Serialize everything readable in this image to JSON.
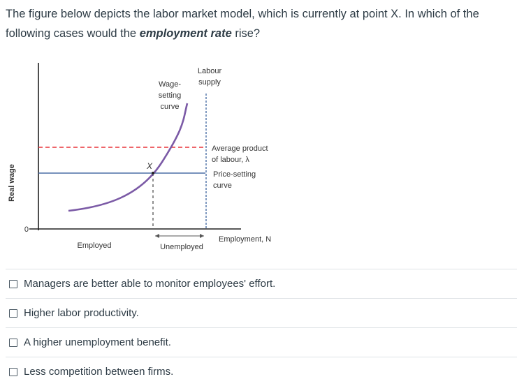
{
  "question": {
    "part1": "The figure below depicts the labor market model, which is currently at point X. In which of the following cases would the ",
    "emphasis": "employment rate",
    "part2": " rise?"
  },
  "figure": {
    "y_axis_label": "Real wage",
    "origin_label": "0",
    "x_axis_label": "Employment, N",
    "labour_supply_label_line1": "Labour",
    "labour_supply_label_line2": "supply",
    "wage_setting_label_line1": "Wage-",
    "wage_setting_label_line2": "setting",
    "wage_setting_label_line3": "curve",
    "avg_product_label_line1": "Average product",
    "avg_product_label_line2": "of labour, λ",
    "price_setting_label_line1": "Price-setting",
    "price_setting_label_line2": "curve",
    "point_label": "X",
    "employed_label": "Employed",
    "unemployed_label": "Unemployed",
    "colors": {
      "wage_setting_curve": "#7b5aa6",
      "price_setting_curve": "#4a6fa5",
      "average_product_line": "#e8333a",
      "labour_supply_line": "#4a6fa5",
      "axis": "#222222"
    }
  },
  "answers": [
    {
      "label": "Managers are better able to monitor employees' effort.",
      "checked": false
    },
    {
      "label": "Higher labor productivity.",
      "checked": false
    },
    {
      "label": "A higher unemployment benefit.",
      "checked": false
    },
    {
      "label": "Less competition between firms.",
      "checked": false
    }
  ]
}
